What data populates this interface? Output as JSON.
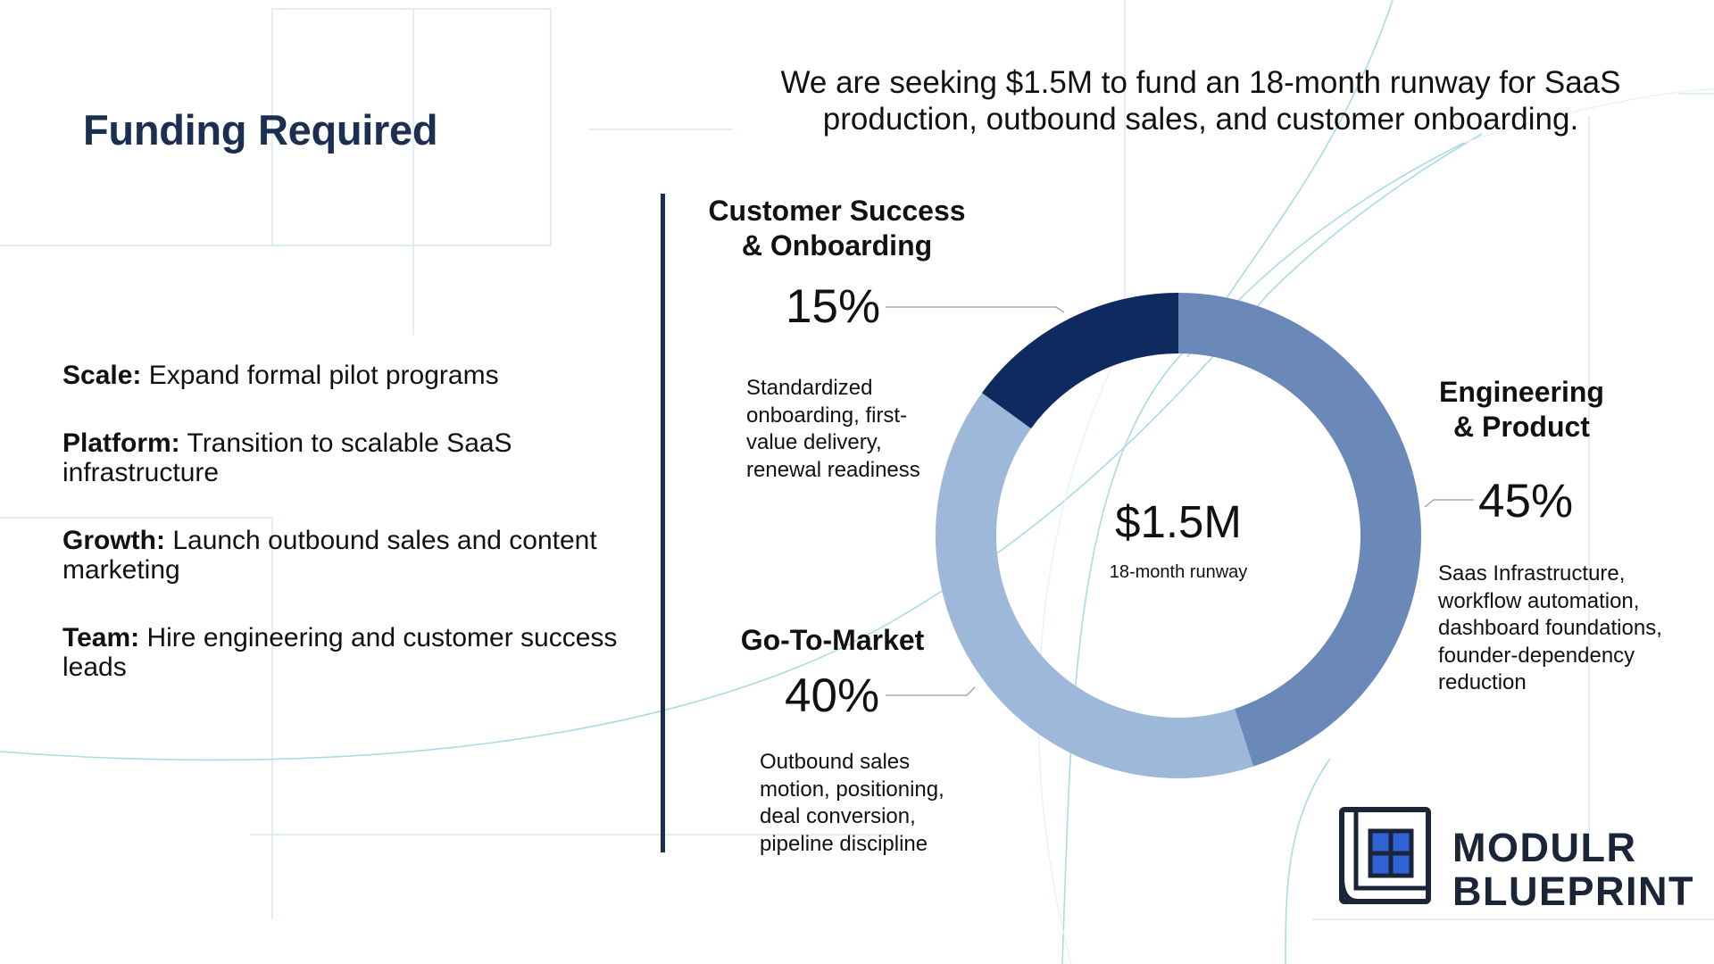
{
  "slide": {
    "title": "Funding Required",
    "headline": "We are seeking $1.5M to fund an 18-month runway for SaaS production, outbound sales, and customer onboarding."
  },
  "bullets": [
    {
      "label": "Scale:",
      "text": " Expand formal pilot programs"
    },
    {
      "label": "Platform:",
      "text": " Transition to scalable SaaS infrastructure"
    },
    {
      "label": "Growth:",
      "text": " Launch outbound sales and content marketing"
    },
    {
      "label": "Team:",
      "text": " Hire engineering and customer success leads"
    }
  ],
  "chart_data": {
    "type": "pie",
    "donut": true,
    "center_value": "$1.5M",
    "center_label": "18-month runway",
    "slices": [
      {
        "name": "Engineering & Product",
        "label_lines": [
          "Engineering",
          "& Product"
        ],
        "value": 45,
        "display": "45%",
        "color": "#6b89b8",
        "description": "Saas Infrastructure, workflow automation, dashboard foundations, founder-dependency reduction"
      },
      {
        "name": "Go-To-Market",
        "label_lines": [
          "Go-To-Market"
        ],
        "value": 40,
        "display": "40%",
        "color": "#9db8d9",
        "description": "Outbound sales motion, positioning, deal conversion, pipeline discipline"
      },
      {
        "name": "Customer Success & Onboarding",
        "label_lines": [
          "Customer Success",
          "& Onboarding"
        ],
        "value": 15,
        "display": "15%",
        "color": "#0f2a5e",
        "description": "Standardized onboarding, first-value delivery, renewal readiness"
      }
    ]
  },
  "logo": {
    "line1": "MODULR",
    "line2": "BLUEPRINT",
    "icon": "blueprint-grid-icon"
  },
  "colors": {
    "title": "#1b2f52",
    "divider": "#1b2f52",
    "background_lines": "#cfe6ee"
  }
}
